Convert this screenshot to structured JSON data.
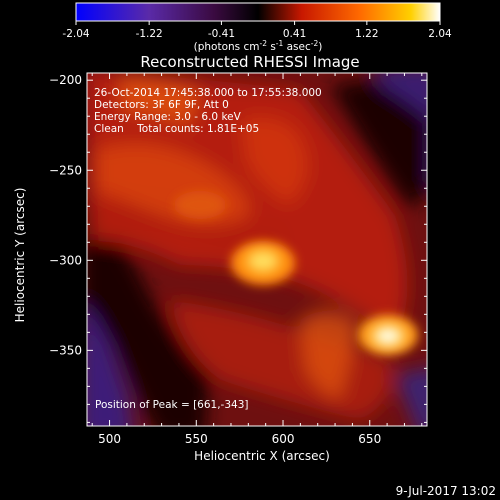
{
  "colorbar": {
    "min": -2.04,
    "max": 2.04,
    "ticks": [
      "-2.04",
      "-1.22",
      "-0.41",
      "0.41",
      "1.22",
      "2.04"
    ],
    "units_prefix": "(photons cm",
    "units_sup1": "-2",
    "units_mid1": " s",
    "units_sup2": "-1",
    "units_mid2": " asec",
    "units_sup3": "-2",
    "units_suffix": ")",
    "colormap": "rhessi-fire (blue-purple-black-red-orange-yellow-white)"
  },
  "chart_data": {
    "type": "heatmap",
    "title": "Reconstructed RHESSI Image",
    "xlabel": "Heliocentric X (arcsec)",
    "ylabel": "Heliocentric Y (arcsec)",
    "xlim": [
      487,
      683
    ],
    "ylim": [
      -392,
      -196
    ],
    "xticks": [
      500,
      550,
      600,
      650
    ],
    "yticks": [
      -200,
      -250,
      -300,
      -350
    ],
    "xtick_labels": [
      "500",
      "550",
      "600",
      "650"
    ],
    "ytick_labels": [
      "−200",
      "−250",
      "−300",
      "−350"
    ],
    "annotations": [
      "26-Oct-2014 17:45:38.000 to 17:55:38.000",
      "Detectors: 3F 6F 9F, Att 0",
      "Energy Range: 3.0 - 6.0 keV",
      "Clean    Total counts: 1.81E+05"
    ],
    "peak_label": "Position of Peak = [661,-343]",
    "peak": {
      "x": 661,
      "y": -343
    },
    "secondary_source": {
      "x": 594,
      "y": -300
    },
    "grid": false
  },
  "footer": {
    "date": "9-Jul-2017 13:02"
  }
}
